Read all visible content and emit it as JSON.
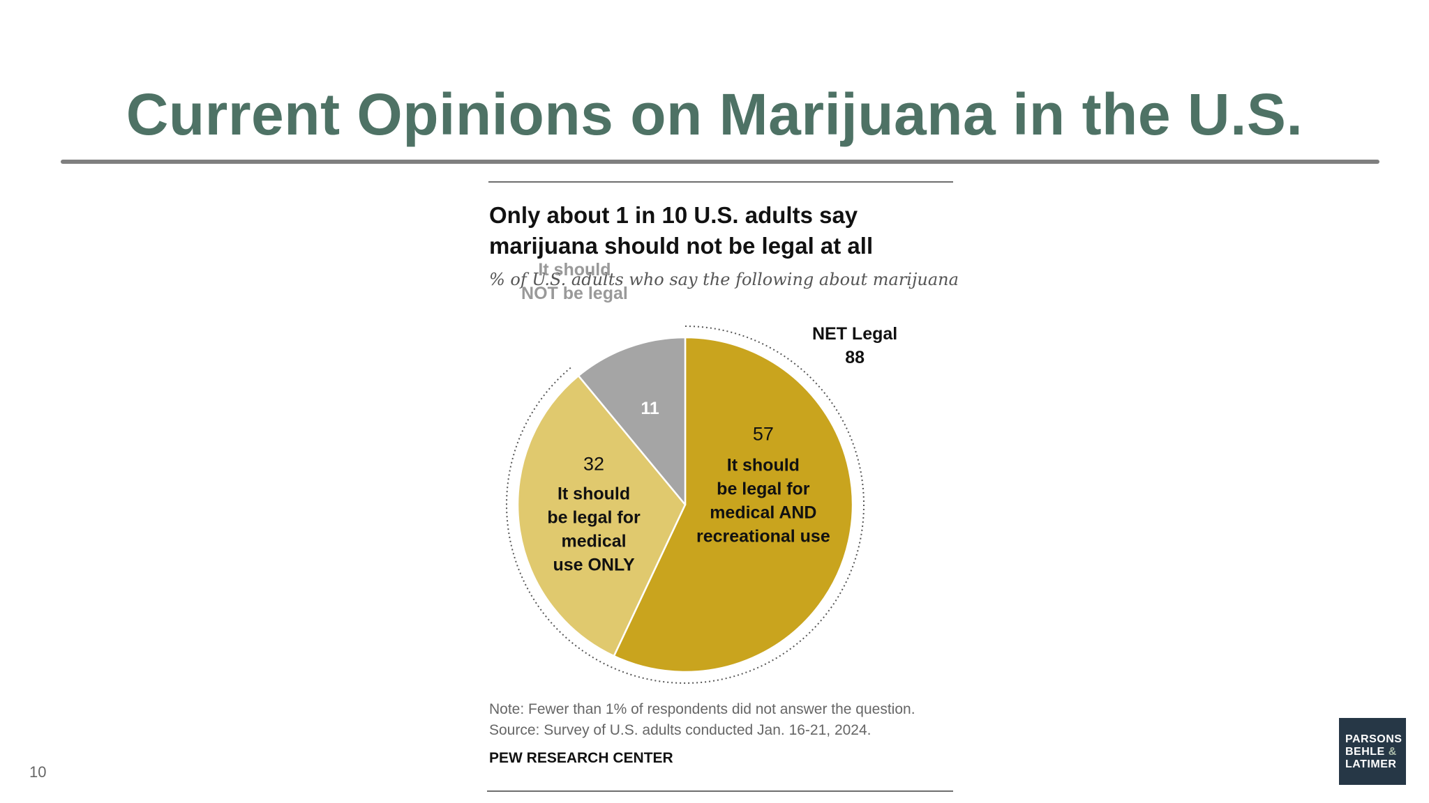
{
  "slide": {
    "title": "Current Opinions on Marijuana in the U.S.",
    "page_number": "10",
    "logo": {
      "line1": "PARSONS",
      "line2": "BEHLE",
      "amp": "&",
      "line3": "LATIMER"
    }
  },
  "colors": {
    "title": "#4e7265",
    "medical_and_recreational": "#c9a41e",
    "medical_only": "#e0c96e",
    "not_legal": "#a5a5a5",
    "logo_bg": "#263746"
  },
  "chart_data": {
    "type": "pie",
    "title": "Only about 1 in 10 U.S. adults say marijuana should not be legal at all",
    "title_lines": [
      "Only about 1 in 10 U.S. adults say",
      "marijuana should not be legal at all"
    ],
    "subtitle": "% of U.S. adults who say the following about marijuana",
    "slices": [
      {
        "value": 57,
        "label": [
          "It should",
          "be legal for",
          "medical AND",
          "recreational use"
        ],
        "color": "#c9a41e"
      },
      {
        "value": 32,
        "label": [
          "It should",
          "be legal for",
          "medical",
          "use ONLY"
        ],
        "color": "#e0c96e"
      },
      {
        "value": 11,
        "label": [
          "It should",
          "NOT be legal"
        ],
        "color": "#a5a5a5"
      }
    ],
    "net": {
      "label": "NET Legal",
      "value": 88
    },
    "note": "Note: Fewer than 1% of respondents did not answer the question.",
    "source": "Source: Survey of U.S. adults conducted Jan. 16-21, 2024.",
    "source_org": "PEW RESEARCH CENTER"
  }
}
